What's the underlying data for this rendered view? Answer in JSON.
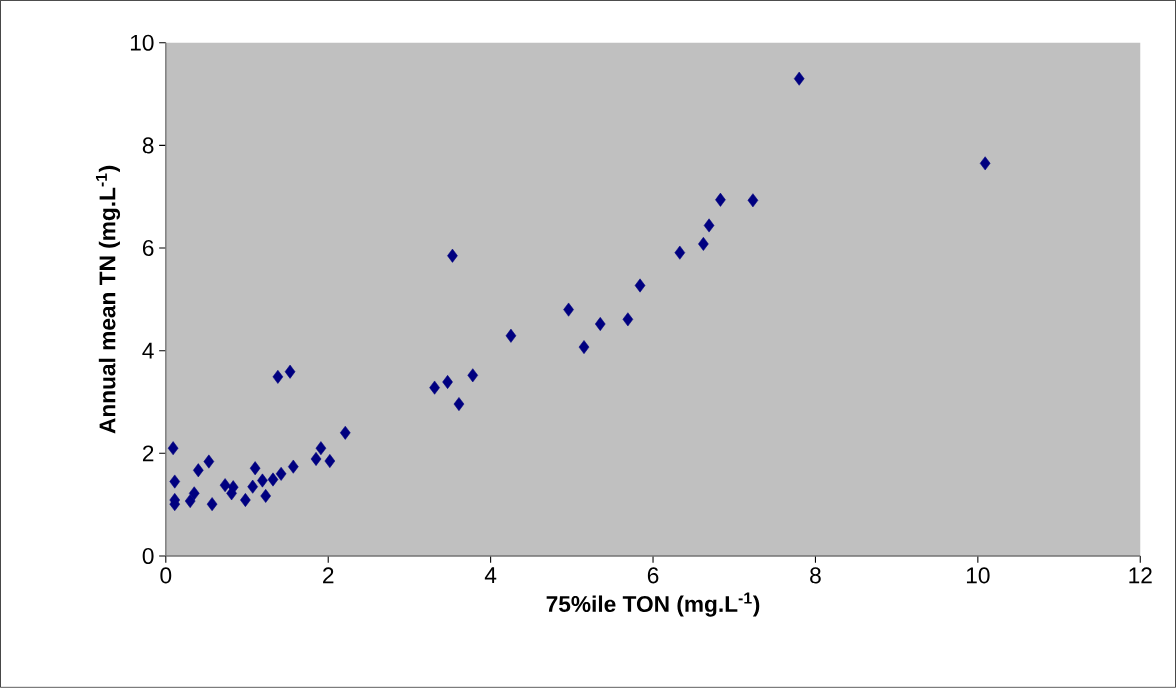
{
  "chart_data": {
    "type": "scatter",
    "xlabel": "75%ile TON (mg.L$^{-1}$)",
    "ylabel": "Annual mean TN (mg.L$^{-1}$)",
    "x": [
      0.09,
      0.11,
      0.11,
      0.11,
      0.3,
      0.35,
      0.4,
      0.53,
      0.57,
      0.73,
      0.83,
      0.81,
      0.98,
      1.07,
      1.1,
      1.19,
      1.23,
      1.32,
      1.42,
      1.57,
      1.38,
      1.53,
      1.91,
      1.85,
      2.02,
      2.21,
      3.53,
      3.31,
      3.47,
      3.78,
      3.61,
      4.25,
      4.96,
      5.15,
      5.35,
      5.69,
      5.84,
      6.33,
      6.62,
      7.8,
      10.09,
      6.83,
      7.23,
      6.69
    ],
    "values": [
      2.1,
      1.45,
      1.09,
      1.01,
      1.07,
      1.22,
      1.67,
      1.84,
      1.01,
      1.38,
      1.34,
      1.22,
      1.09,
      1.35,
      1.71,
      1.47,
      1.17,
      1.49,
      1.6,
      1.74,
      3.49,
      3.59,
      2.1,
      1.89,
      1.85,
      2.4,
      5.85,
      3.28,
      3.39,
      3.52,
      2.96,
      4.29,
      4.8,
      4.07,
      4.52,
      4.61,
      5.27,
      5.91,
      6.08,
      9.3,
      7.65,
      6.94,
      6.93,
      6.44
    ],
    "color": "#000080",
    "marker": "diamond",
    "grid": false,
    "xlim": [
      0,
      12
    ],
    "ylim": [
      0,
      10
    ],
    "xticks": [
      0,
      2,
      4,
      6,
      8,
      10,
      12
    ],
    "yticks": [
      0,
      2,
      4,
      6,
      8,
      10
    ]
  }
}
